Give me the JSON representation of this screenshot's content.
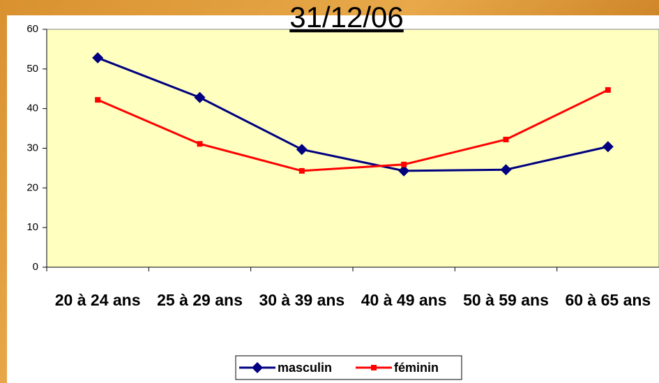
{
  "chart_data": {
    "type": "line",
    "title": "31/12/06",
    "categories": [
      "20 à 24 ans",
      "25 à 29 ans",
      "30 à 39 ans",
      "40 à 49 ans",
      "50 à 59 ans",
      "60 à 65 ans"
    ],
    "series": [
      {
        "name": "masculin",
        "color": "#000080",
        "marker": "diamond",
        "values": [
          52.8,
          42.8,
          29.7,
          24.3,
          24.6,
          30.4
        ]
      },
      {
        "name": "féminin",
        "color": "#ff0000",
        "marker": "square",
        "values": [
          42.2,
          31.1,
          24.3,
          25.9,
          32.2,
          44.7
        ]
      }
    ],
    "ylim": [
      0,
      60
    ],
    "yticks": [
      0,
      10,
      20,
      30,
      40,
      50,
      60
    ],
    "grid": false,
    "legend": "bottom"
  }
}
